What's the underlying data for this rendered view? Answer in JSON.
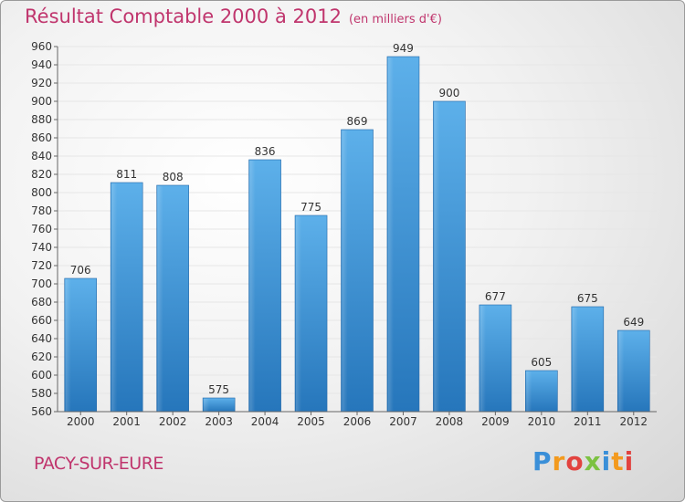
{
  "title": "Résultat Comptable 2000 à 2012",
  "unit": "(en milliers d'€)",
  "commune": "PACY-SUR-EURE",
  "logo_text": "Proxiti",
  "colors": {
    "bar_light": "#5aaee8",
    "bar_dark": "#2a7cc0",
    "title": "#c0356d"
  },
  "chart_data": {
    "type": "bar",
    "title": "Résultat Comptable 2000 à 2012",
    "subtitle": "(en milliers d'€)",
    "categories": [
      "2000",
      "2001",
      "2002",
      "2003",
      "2004",
      "2005",
      "2006",
      "2007",
      "2008",
      "2009",
      "2010",
      "2011",
      "2012"
    ],
    "values": [
      706,
      811,
      808,
      575,
      836,
      775,
      869,
      949,
      900,
      677,
      605,
      675,
      649
    ],
    "ylim": [
      560,
      960
    ],
    "yticks": [
      560,
      580,
      600,
      620,
      640,
      660,
      680,
      700,
      720,
      740,
      760,
      780,
      800,
      820,
      840,
      860,
      880,
      900,
      920,
      940,
      960
    ],
    "grid": true,
    "xlabel": "",
    "ylabel": ""
  }
}
